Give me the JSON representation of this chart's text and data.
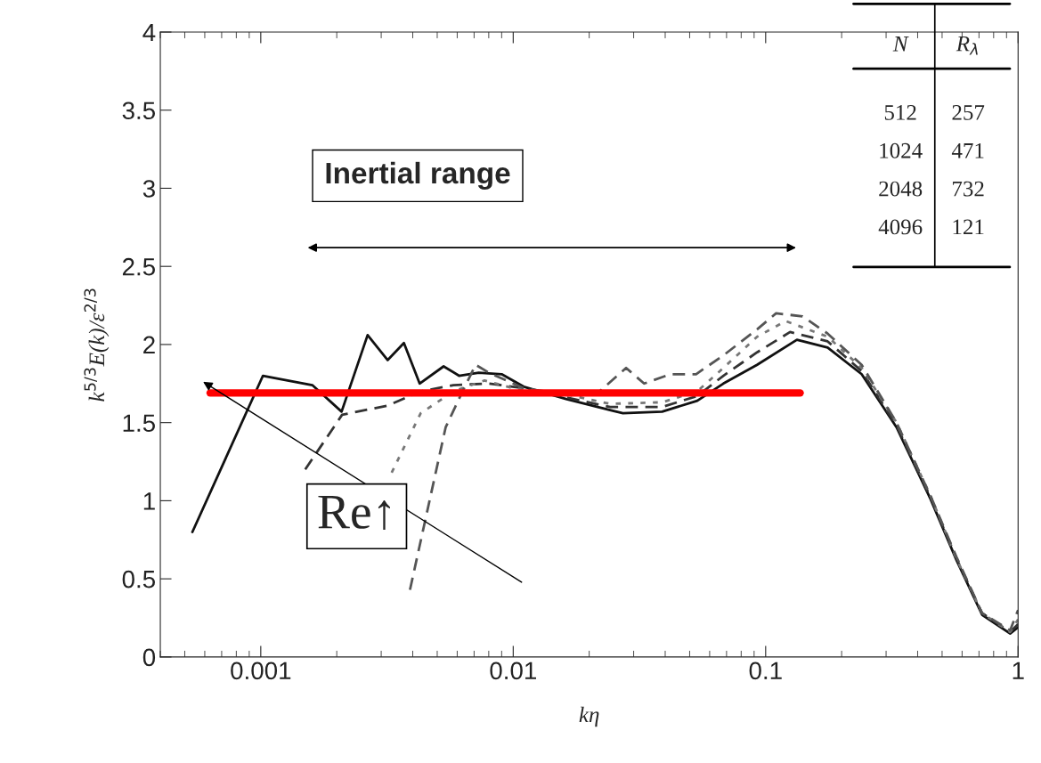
{
  "chart_data": {
    "type": "line",
    "xlabel": "kη",
    "ylabel": "k$^{5/3}$E(k)/ε$^{2/3}$",
    "log": "x",
    "xlim": [
      0.0004,
      1
    ],
    "xticks": [
      0.001,
      0.01,
      0.1,
      1
    ],
    "ylim": [
      0,
      4
    ],
    "yticks": [
      0,
      0.5,
      1,
      1.5,
      2,
      2.5,
      3,
      3.5,
      4
    ],
    "grid": false,
    "legend": false,
    "marker": "none",
    "series": [
      {
        "color": "#111111",
        "line_style": "solid",
        "x": [
          0.000536,
          0.00102,
          0.0016,
          0.00209,
          0.00265,
          0.00318,
          0.00369,
          0.00426,
          0.0053,
          0.0061,
          0.0073,
          0.009,
          0.011,
          0.0163,
          0.0242,
          0.0272,
          0.0389,
          0.0536,
          0.068,
          0.0925,
          0.133,
          0.176,
          0.24,
          0.33,
          0.45,
          0.57,
          0.72,
          0.93,
          1.0
        ],
        "values": [
          0.8,
          1.8,
          1.74,
          1.57,
          2.06,
          1.9,
          2.01,
          1.75,
          1.86,
          1.8,
          1.82,
          1.81,
          1.73,
          1.65,
          1.58,
          1.56,
          1.57,
          1.64,
          1.75,
          1.87,
          2.03,
          1.98,
          1.81,
          1.47,
          1.01,
          0.62,
          0.27,
          0.15,
          0.19
        ]
      },
      {
        "color": "#333333",
        "line_style": "dashed",
        "x": [
          0.0015,
          0.0021,
          0.0032,
          0.0043,
          0.0058,
          0.008,
          0.011,
          0.0163,
          0.0242,
          0.0389,
          0.0536,
          0.068,
          0.0925,
          0.125,
          0.176,
          0.24,
          0.33,
          0.45,
          0.57,
          0.72,
          0.93,
          1.0
        ],
        "values": [
          1.2,
          1.55,
          1.61,
          1.7,
          1.74,
          1.75,
          1.72,
          1.66,
          1.6,
          1.6,
          1.67,
          1.8,
          1.95,
          2.08,
          2.02,
          1.83,
          1.48,
          1.02,
          0.63,
          0.28,
          0.16,
          0.21
        ]
      },
      {
        "color": "#777777",
        "line_style": "dotted",
        "x": [
          0.0033,
          0.0043,
          0.0058,
          0.0077,
          0.01,
          0.0163,
          0.0242,
          0.0389,
          0.0536,
          0.068,
          0.0925,
          0.12,
          0.176,
          0.24,
          0.33,
          0.45,
          0.57,
          0.72,
          0.93,
          1.0
        ],
        "values": [
          1.18,
          1.56,
          1.7,
          1.77,
          1.72,
          1.68,
          1.62,
          1.63,
          1.7,
          1.85,
          2.05,
          2.15,
          2.05,
          1.85,
          1.5,
          1.03,
          0.63,
          0.28,
          0.16,
          0.24
        ]
      },
      {
        "color": "#555555",
        "line_style": "dashed",
        "x": [
          0.0039,
          0.0054,
          0.0063,
          0.0071,
          0.008,
          0.011,
          0.0163,
          0.022,
          0.028,
          0.033,
          0.042,
          0.053,
          0.068,
          0.093,
          0.11,
          0.14,
          0.176,
          0.24,
          0.33,
          0.45,
          0.57,
          0.72,
          0.93,
          1.0
        ],
        "values": [
          0.43,
          1.47,
          1.7,
          1.87,
          1.82,
          1.72,
          1.68,
          1.7,
          1.85,
          1.75,
          1.81,
          1.81,
          1.93,
          2.1,
          2.2,
          2.18,
          2.07,
          1.87,
          1.5,
          1.03,
          0.64,
          0.28,
          0.17,
          0.3
        ]
      },
      {
        "color": "#ff0000",
        "line_style": "solid",
        "x": [
          0.00063,
          0.137
        ],
        "values": [
          1.69,
          1.69
        ]
      }
    ],
    "annotations": [
      "Inertial range",
      "Re↑",
      "N",
      "R$_{λ}$",
      "512",
      "257",
      "1024",
      "471",
      "2048",
      "732",
      "4096",
      "121"
    ]
  }
}
